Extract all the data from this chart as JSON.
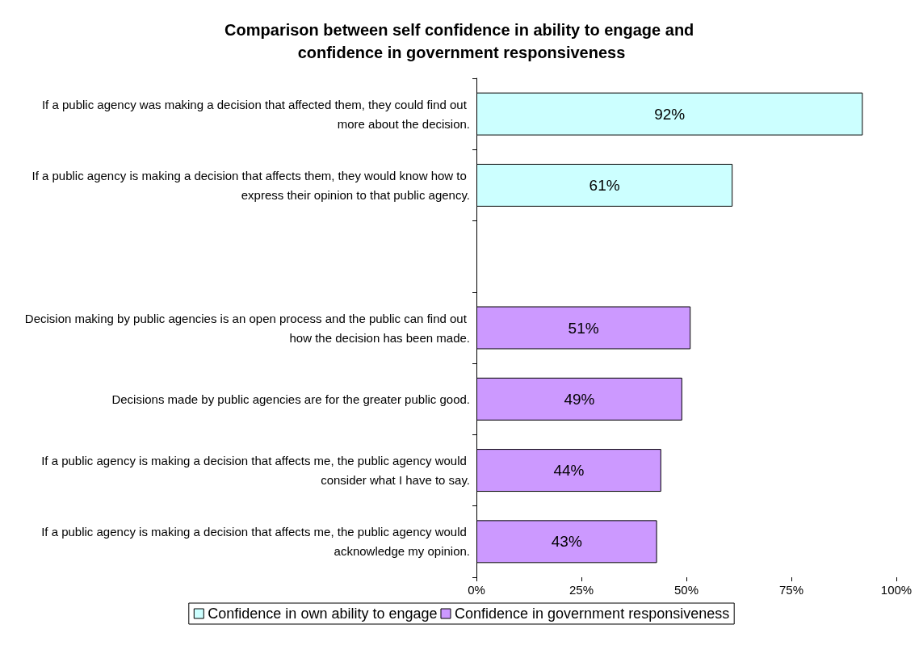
{
  "chart_data": {
    "type": "bar",
    "orientation": "horizontal",
    "title": "Comparison between self confidence in ability to engage and confidence in government responsiveness",
    "categories": [
      "If a public agency was making a decision that affected them, they could find out more about the decision.",
      "If a public agency is making a decision that affects them, they would know how to express their opinion to that public agency.",
      null,
      "Decision making by public agencies is an open process and the public can find out how the decision has been made.",
      "Decisions made by public agencies are for the greater public good.",
      "If a public agency is making a decision that affects me, the public agency would consider what I have to say.",
      "If a public agency is making a decision that affects me, the public agency would acknowledge my opinion."
    ],
    "series": [
      {
        "name": "Confidence in own ability to engage",
        "color": "#ccffff",
        "values": [
          92,
          61,
          null,
          null,
          null,
          null,
          null
        ],
        "value_labels": [
          "92%",
          "61%",
          null,
          null,
          null,
          null,
          null
        ]
      },
      {
        "name": "Confidence in government responsiveness",
        "color": "#cc99ff",
        "values": [
          null,
          null,
          null,
          51,
          49,
          44,
          43
        ],
        "value_labels": [
          null,
          null,
          null,
          "51%",
          "49%",
          "44%",
          "43%"
        ]
      }
    ],
    "xlim": [
      0,
      100
    ],
    "xticks": [
      {
        "value": 0,
        "label": "0%"
      },
      {
        "value": 25,
        "label": "25%"
      },
      {
        "value": 50,
        "label": "50%"
      },
      {
        "value": 75,
        "label": "75%"
      },
      {
        "value": 100,
        "label": "100%"
      }
    ],
    "grid": false,
    "legend": "bottom"
  }
}
